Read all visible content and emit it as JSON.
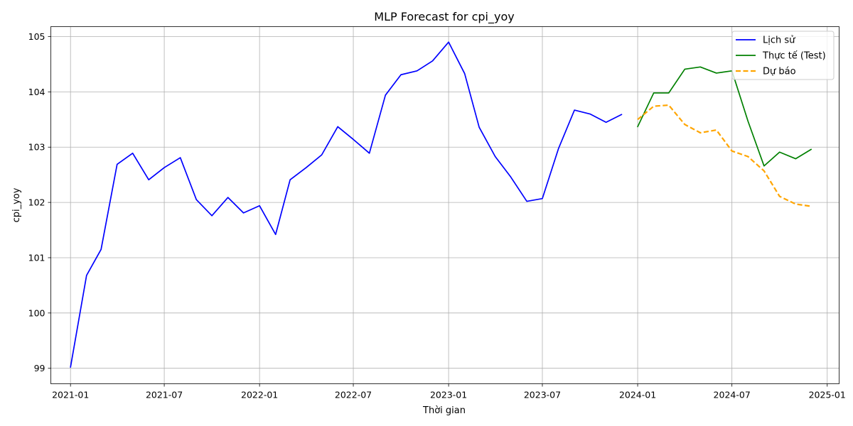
{
  "chart_data": {
    "type": "line",
    "title": "MLP Forecast for cpi_yoy",
    "xlabel": "Thời gian",
    "ylabel": "cpi_yoy",
    "xlim": [
      "2020-11-24",
      "2025-01-24"
    ],
    "ylim": [
      98.72,
      105.18
    ],
    "x_ticks": [
      {
        "date": "2021-01-01",
        "label": "2021-01"
      },
      {
        "date": "2021-07-01",
        "label": "2021-07"
      },
      {
        "date": "2022-01-01",
        "label": "2022-01"
      },
      {
        "date": "2022-07-01",
        "label": "2022-07"
      },
      {
        "date": "2023-01-01",
        "label": "2023-01"
      },
      {
        "date": "2023-07-01",
        "label": "2023-07"
      },
      {
        "date": "2024-01-01",
        "label": "2024-01"
      },
      {
        "date": "2024-07-01",
        "label": "2024-07"
      },
      {
        "date": "2025-01-01",
        "label": "2025-01"
      }
    ],
    "y_ticks": [
      99,
      100,
      101,
      102,
      103,
      104,
      105
    ],
    "grid": true,
    "legend_position": "top-right",
    "series": [
      {
        "name": "Lịch sử",
        "color": "#0000ff",
        "style": "solid",
        "x": [
          "2021-01-01",
          "2021-02-01",
          "2021-03-01",
          "2021-04-01",
          "2021-05-01",
          "2021-06-01",
          "2021-07-01",
          "2021-08-01",
          "2021-09-01",
          "2021-10-01",
          "2021-11-01",
          "2021-12-01",
          "2022-01-01",
          "2022-02-01",
          "2022-03-01",
          "2022-04-01",
          "2022-05-01",
          "2022-06-01",
          "2022-07-01",
          "2022-08-01",
          "2022-09-01",
          "2022-10-01",
          "2022-11-01",
          "2022-12-01",
          "2023-01-01",
          "2023-02-01",
          "2023-03-01",
          "2023-04-01",
          "2023-05-01",
          "2023-06-01",
          "2023-07-01",
          "2023-08-01",
          "2023-09-01",
          "2023-10-01",
          "2023-11-01",
          "2023-12-01"
        ],
        "values": [
          99.02,
          100.68,
          101.15,
          102.69,
          102.89,
          102.41,
          102.63,
          102.81,
          102.05,
          101.76,
          102.09,
          101.81,
          101.94,
          101.42,
          102.41,
          102.63,
          102.86,
          103.37,
          103.14,
          102.89,
          103.94,
          104.31,
          104.38,
          104.56,
          104.9,
          104.33,
          103.36,
          102.83,
          102.46,
          102.02,
          102.07,
          102.97,
          103.67,
          103.6,
          103.45,
          103.59
        ]
      },
      {
        "name": "Thực tế (Test)",
        "color": "#008000",
        "style": "solid",
        "x": [
          "2024-01-01",
          "2024-02-01",
          "2024-03-01",
          "2024-04-01",
          "2024-05-01",
          "2024-06-01",
          "2024-07-01",
          "2024-08-01",
          "2024-09-01",
          "2024-10-01",
          "2024-11-01",
          "2024-12-01"
        ],
        "values": [
          103.37,
          103.98,
          103.98,
          104.41,
          104.45,
          104.34,
          104.38,
          103.47,
          102.66,
          102.91,
          102.79,
          102.96
        ]
      },
      {
        "name": "Dự báo",
        "color": "#ffa500",
        "style": "dashed",
        "x": [
          "2024-01-01",
          "2024-02-01",
          "2024-03-01",
          "2024-04-01",
          "2024-05-01",
          "2024-06-01",
          "2024-07-01",
          "2024-08-01",
          "2024-09-01",
          "2024-10-01",
          "2024-11-01",
          "2024-12-01"
        ],
        "values": [
          103.5,
          103.74,
          103.76,
          103.41,
          103.26,
          103.31,
          102.93,
          102.83,
          102.57,
          102.11,
          101.97,
          101.93
        ]
      }
    ]
  }
}
